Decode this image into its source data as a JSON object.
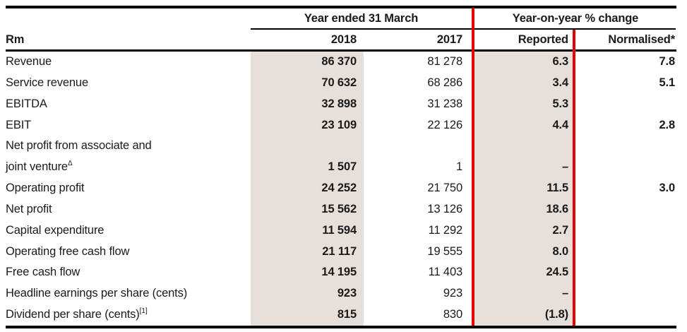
{
  "table": {
    "corner_label": "Rm",
    "groups": [
      {
        "label": "Year ended 31 March",
        "columns": [
          "2018",
          "2017"
        ]
      },
      {
        "label": "Year-on-year % change",
        "columns": [
          "Reported",
          "Normalised*"
        ]
      }
    ],
    "rows": [
      {
        "label": "Revenue",
        "y2018": "86 370",
        "y2017": "81 278",
        "reported": "6.3",
        "normalised": "7.8"
      },
      {
        "label": "Service revenue",
        "y2018": "70 632",
        "y2017": "68 286",
        "reported": "3.4",
        "normalised": "5.1"
      },
      {
        "label": "EBITDA",
        "y2018": "32 898",
        "y2017": "31 238",
        "reported": "5.3",
        "normalised": ""
      },
      {
        "label": "EBIT",
        "y2018": "23 109",
        "y2017": "22 126",
        "reported": "4.4",
        "normalised": "2.8"
      },
      {
        "label": "Net profit from associate and\njoint venture",
        "sup": "Δ",
        "y2018": "1 507",
        "y2017": "1",
        "reported": "–",
        "normalised": ""
      },
      {
        "label": "Operating profit",
        "y2018": "24 252",
        "y2017": "21 750",
        "reported": "11.5",
        "normalised": "3.0"
      },
      {
        "label": "Net profit",
        "y2018": "15 562",
        "y2017": "13 126",
        "reported": "18.6",
        "normalised": ""
      },
      {
        "label": "Capital expenditure",
        "y2018": "11 594",
        "y2017": "11 292",
        "reported": "2.7",
        "normalised": ""
      },
      {
        "label": "Operating free cash flow",
        "y2018": "21 117",
        "y2017": "19 555",
        "reported": "8.0",
        "normalised": ""
      },
      {
        "label": "Free cash flow",
        "y2018": "14 195",
        "y2017": "11 403",
        "reported": "24.5",
        "normalised": ""
      },
      {
        "label": "Headline earnings per share (cents)",
        "y2018": "923",
        "y2017": "923",
        "reported": "–",
        "normalised": ""
      },
      {
        "label": "Dividend per share (cents)",
        "sup": "[1]",
        "y2018": "815",
        "y2017": "830",
        "reported": "(1.8)",
        "normalised": ""
      }
    ],
    "colors": {
      "column_shade": "#e7e0da",
      "accent_red": "#e60000",
      "text": "#1a1a1a",
      "rule_black": "#000000"
    }
  }
}
